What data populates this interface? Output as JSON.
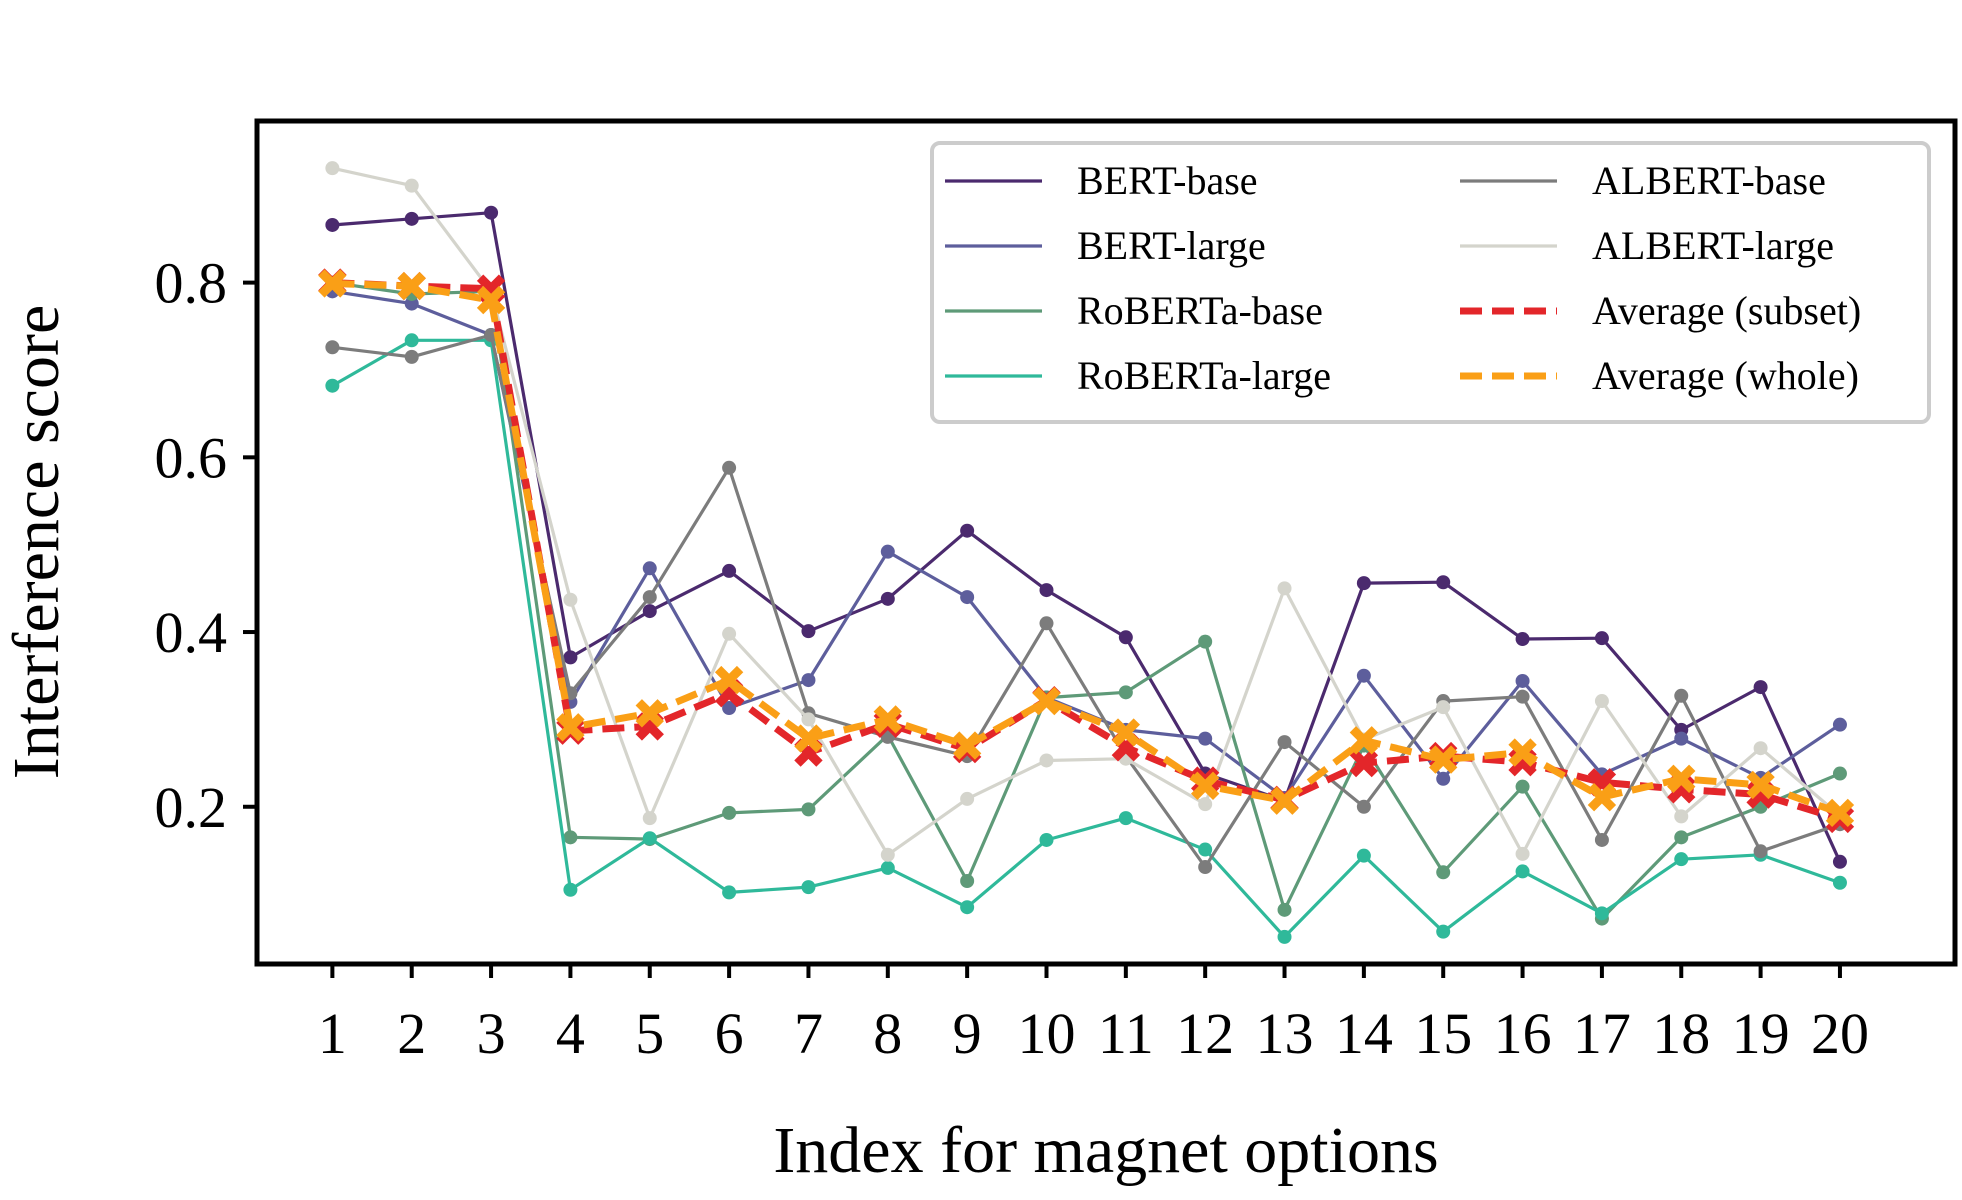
{
  "chart_data": {
    "type": "line",
    "title": "",
    "xlabel": "Index for magnet options",
    "ylabel": "Interference score",
    "x": [
      1,
      2,
      3,
      4,
      5,
      6,
      7,
      8,
      9,
      10,
      11,
      12,
      13,
      14,
      15,
      16,
      17,
      18,
      19,
      20
    ],
    "x_tick_labels": [
      "1",
      "2",
      "3",
      "4",
      "5",
      "6",
      "7",
      "8",
      "9",
      "10",
      "11",
      "12",
      "13",
      "14",
      "15",
      "16",
      "17",
      "18",
      "19",
      "20"
    ],
    "xlim": [
      0.05,
      21.45
    ],
    "ylim": [
      0.02,
      0.985
    ],
    "y_ticks": [
      0.2,
      0.4,
      0.6,
      0.8
    ],
    "y_tick_labels": [
      "0.2",
      "0.4",
      "0.6",
      "0.8"
    ],
    "grid": false,
    "legend_position": "top-right",
    "series": [
      {
        "name": "BERT-base",
        "color": "#4b2a6e",
        "style": "solid",
        "marker": "dot",
        "values": [
          0.866,
          0.873,
          0.88,
          0.371,
          0.424,
          0.47,
          0.401,
          0.438,
          0.516,
          0.448,
          0.394,
          0.238,
          0.207,
          0.456,
          0.457,
          0.392,
          0.393,
          0.288,
          0.337,
          0.137
        ]
      },
      {
        "name": "BERT-large",
        "color": "#5d5e9c",
        "style": "solid",
        "marker": "dot",
        "values": [
          0.79,
          0.776,
          0.74,
          0.32,
          0.473,
          0.313,
          0.345,
          0.492,
          0.44,
          0.325,
          0.288,
          0.278,
          0.21,
          0.35,
          0.232,
          0.344,
          0.237,
          0.278,
          0.233,
          0.294
        ]
      },
      {
        "name": "RoBERTa-base",
        "color": "#5e9a78",
        "style": "solid",
        "marker": "dot",
        "values": [
          0.8,
          0.787,
          0.79,
          0.165,
          0.163,
          0.193,
          0.197,
          0.282,
          0.115,
          0.325,
          0.331,
          0.389,
          0.082,
          0.27,
          0.125,
          0.223,
          0.072,
          0.165,
          0.2,
          0.238
        ]
      },
      {
        "name": "RoBERTa-large",
        "color": "#2fb99a",
        "style": "solid",
        "marker": "dot",
        "values": [
          0.682,
          0.734,
          0.734,
          0.105,
          0.164,
          0.102,
          0.108,
          0.13,
          0.085,
          0.162,
          0.187,
          0.151,
          0.051,
          0.144,
          0.057,
          0.126,
          0.078,
          0.14,
          0.145,
          0.113
        ]
      },
      {
        "name": "ALBERT-base",
        "color": "#7c7c7c",
        "style": "solid",
        "marker": "dot",
        "values": [
          0.726,
          0.715,
          0.74,
          0.33,
          0.44,
          0.588,
          0.307,
          0.28,
          0.258,
          0.41,
          0.258,
          0.131,
          0.274,
          0.2,
          0.321,
          0.326,
          0.162,
          0.327,
          0.149,
          0.18
        ]
      },
      {
        "name": "ALBERT-large",
        "color": "#d4d4cc",
        "style": "solid",
        "marker": "dot",
        "values": [
          0.931,
          0.911,
          0.79,
          0.437,
          0.187,
          0.398,
          0.3,
          0.145,
          0.209,
          0.253,
          0.255,
          0.203,
          0.45,
          0.277,
          0.314,
          0.146,
          0.321,
          0.189,
          0.267,
          0.19
        ]
      },
      {
        "name": "Average (subset)",
        "color": "#e3262a",
        "style": "dashed",
        "marker": "x",
        "values": [
          0.8,
          0.796,
          0.793,
          0.287,
          0.292,
          0.33,
          0.262,
          0.295,
          0.266,
          0.322,
          0.268,
          0.23,
          0.208,
          0.25,
          0.258,
          0.251,
          0.228,
          0.22,
          0.214,
          0.186
        ]
      },
      {
        "name": "Average (whole)",
        "color": "#fa9f16",
        "style": "dashed",
        "marker": "x",
        "values": [
          0.799,
          0.796,
          0.78,
          0.291,
          0.307,
          0.345,
          0.278,
          0.3,
          0.27,
          0.321,
          0.285,
          0.224,
          0.207,
          0.276,
          0.254,
          0.262,
          0.211,
          0.232,
          0.225,
          0.193
        ]
      }
    ]
  }
}
